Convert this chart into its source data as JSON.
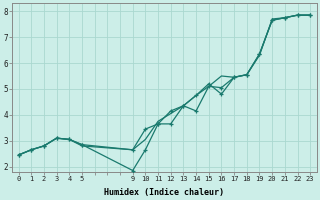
{
  "xlabel": "Humidex (Indice chaleur)",
  "ylabel": "",
  "bg_color": "#cceee8",
  "line_color": "#1a7a6e",
  "grid_color": "#aad8d0",
  "xlim": [
    -0.5,
    23.5
  ],
  "ylim": [
    1.8,
    8.3
  ],
  "xtick_positions": [
    0,
    1,
    2,
    3,
    4,
    5,
    6,
    7,
    8,
    9,
    10,
    11,
    12,
    13,
    14,
    15,
    16,
    17,
    18,
    19,
    20,
    21,
    22,
    23
  ],
  "xtick_labels": [
    "0",
    "1",
    "2",
    "3",
    "4",
    "5",
    "",
    "",
    "",
    "9",
    "10",
    "11",
    "12",
    "13",
    "14",
    "15",
    "16",
    "17",
    "18",
    "19",
    "20",
    "21",
    "22",
    "23"
  ],
  "yticks": [
    2,
    3,
    4,
    5,
    6,
    7,
    8
  ],
  "line1_x": [
    0,
    1,
    2,
    3,
    4,
    5,
    9,
    10,
    11,
    12,
    13,
    14,
    15,
    16,
    17,
    18,
    19,
    20,
    21,
    22,
    23
  ],
  "line1_y": [
    2.45,
    2.65,
    2.8,
    3.1,
    3.05,
    2.85,
    2.65,
    3.45,
    3.65,
    4.15,
    4.35,
    4.75,
    5.2,
    4.8,
    5.45,
    5.55,
    6.35,
    7.65,
    7.75,
    7.85,
    7.85
  ],
  "line2_x": [
    0,
    1,
    2,
    3,
    4,
    5,
    9,
    10,
    11,
    12,
    13,
    14,
    15,
    16,
    17,
    18,
    19,
    20,
    21,
    22,
    23
  ],
  "line2_y": [
    2.45,
    2.65,
    2.8,
    3.1,
    3.05,
    2.85,
    1.85,
    2.65,
    3.65,
    3.65,
    4.35,
    4.15,
    5.1,
    5.05,
    5.45,
    5.55,
    6.35,
    7.65,
    7.75,
    7.85,
    7.85
  ],
  "line3_x": [
    0,
    1,
    2,
    3,
    4,
    5,
    9,
    10,
    11,
    12,
    13,
    14,
    15,
    16,
    17,
    18,
    19,
    20,
    21,
    22,
    23
  ],
  "line3_y": [
    2.45,
    2.65,
    2.8,
    3.1,
    3.05,
    2.8,
    2.65,
    3.05,
    3.75,
    4.05,
    4.35,
    4.75,
    5.1,
    5.5,
    5.45,
    5.55,
    6.3,
    7.7,
    7.75,
    7.85,
    7.85
  ],
  "marker_line1_x": [
    0,
    1,
    2,
    3,
    4,
    5,
    9,
    10,
    11,
    12,
    13,
    14,
    15,
    16,
    17,
    18,
    19,
    20,
    21,
    22,
    23
  ],
  "marker_line2_x": [
    0,
    1,
    2,
    3,
    4,
    5,
    9,
    10,
    11,
    12,
    13,
    14,
    15,
    16,
    17,
    18,
    19,
    20,
    21,
    22,
    23
  ]
}
